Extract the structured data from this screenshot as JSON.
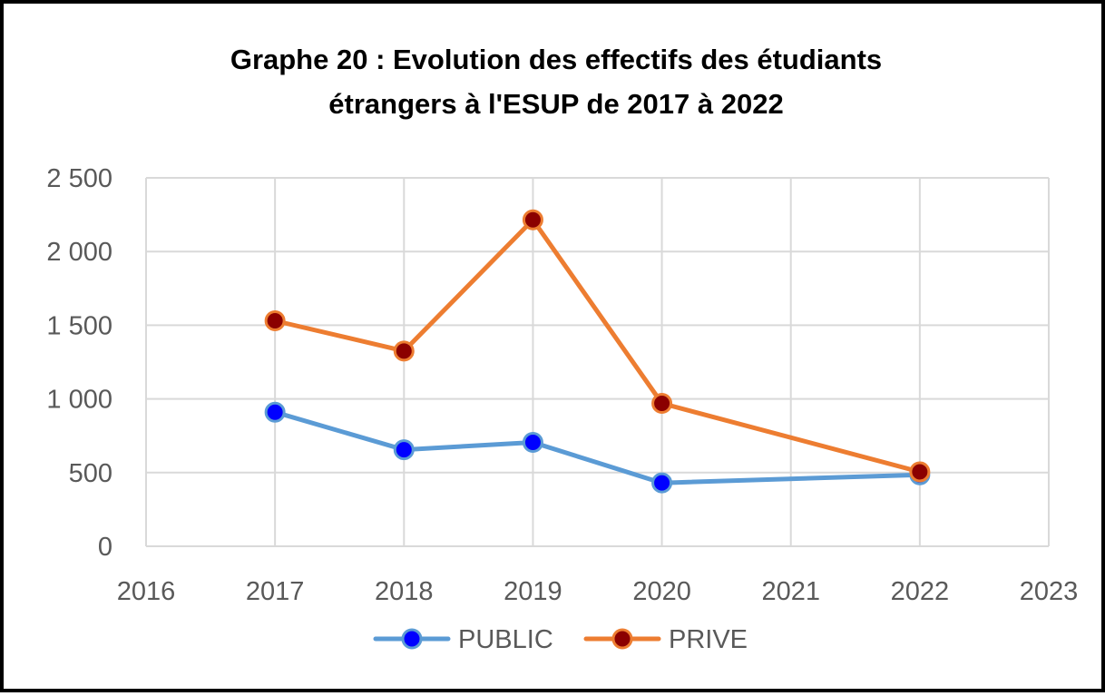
{
  "chart_data": {
    "type": "scatter",
    "title_lines": [
      "Graphe 20 : Evolution des effectifs des étudiants",
      "étrangers à l'ESUP de 2017 à 2022"
    ],
    "xlabel": "",
    "ylabel": "",
    "xlim": [
      2016,
      2023
    ],
    "ylim": [
      0,
      2500
    ],
    "x_ticks": [
      2016,
      2017,
      2018,
      2019,
      2020,
      2021,
      2022,
      2023
    ],
    "x_tick_labels": [
      "2016",
      "2017",
      "2018",
      "2019",
      "2020",
      "2021",
      "2022",
      "2023"
    ],
    "y_ticks": [
      0,
      500,
      1000,
      1500,
      2000,
      2500
    ],
    "y_tick_labels": [
      "0",
      "500",
      "1 000",
      "1 500",
      "2 000",
      "2 500"
    ],
    "grid": true,
    "legend_position": "bottom",
    "series": [
      {
        "name": "PUBLIC",
        "line_color": "#5B9BD5",
        "marker_color": "#0000FF",
        "x": [
          2017,
          2018,
          2019,
          2020,
          2022
        ],
        "y": [
          910,
          655,
          705,
          430,
          485
        ]
      },
      {
        "name": "PRIVE",
        "line_color": "#ED7D31",
        "marker_color": "#8B0000",
        "x": [
          2017,
          2018,
          2019,
          2020,
          2022
        ],
        "y": [
          1530,
          1325,
          2215,
          970,
          505
        ]
      }
    ]
  }
}
